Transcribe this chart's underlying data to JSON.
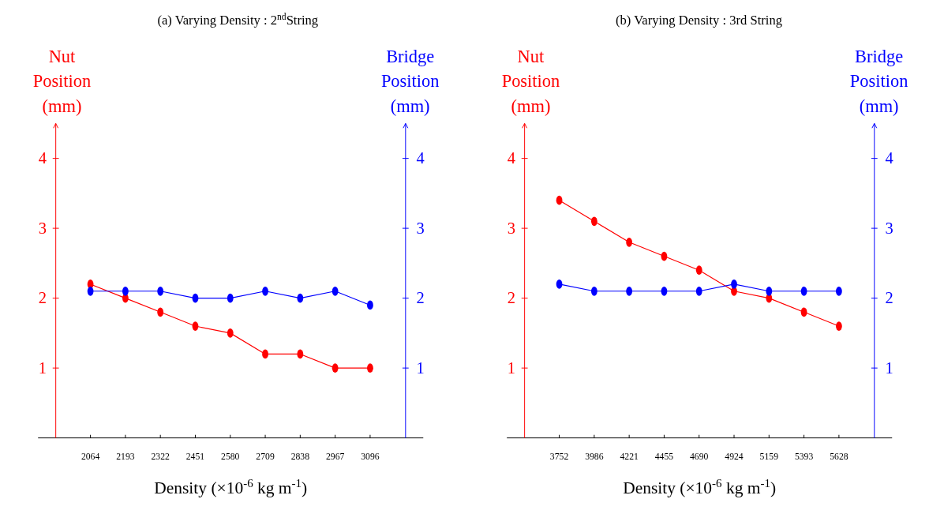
{
  "chart_data": [
    {
      "type": "line",
      "title": "(a) Varying Density : 2$^{nd}$String",
      "xlabel": "Density (×10$^{-6}$ kg m$^{-1}$)",
      "ylabel": "Nut Position (mm)",
      "y2label": "Bridge Position (mm)",
      "categories": [
        "2064",
        "2193",
        "2322",
        "2451",
        "2580",
        "2709",
        "2838",
        "2967",
        "3096"
      ],
      "series": [
        {
          "color": "#ff0000",
          "values": [
            2.2,
            2.0,
            1.8,
            1.6,
            1.5,
            1.2,
            1.2,
            1.0,
            1.0
          ]
        },
        {
          "color": "#0000ff",
          "axis": "y2",
          "values": [
            2.1,
            2.1,
            2.1,
            2.0,
            2.0,
            2.1,
            2.0,
            2.1,
            1.9
          ]
        }
      ],
      "ylim": [
        0,
        4.5
      ],
      "yticks": [
        1,
        2,
        3,
        4
      ],
      "y2lim": [
        0,
        4.5
      ],
      "y2ticks": [
        1,
        2,
        3,
        4
      ],
      "marker": "circle",
      "grid": false
    },
    {
      "type": "line",
      "title": "(b) Varying Density : 3rd String",
      "xlabel": "Density (×10$^{-6}$ kg m$^{-1}$)",
      "ylabel": "Nut Position (mm)",
      "y2label": "Bridge Position (mm)",
      "categories": [
        "3752",
        "3986",
        "4221",
        "4455",
        "4690",
        "4924",
        "5159",
        "5393",
        "5628"
      ],
      "series": [
        {
          "color": "#ff0000",
          "values": [
            3.4,
            3.1,
            2.8,
            2.6,
            2.4,
            2.1,
            2.0,
            1.8,
            1.6
          ]
        },
        {
          "color": "#0000ff",
          "axis": "y2",
          "values": [
            2.2,
            2.1,
            2.1,
            2.1,
            2.1,
            2.2,
            2.1,
            2.1,
            2.1
          ]
        }
      ],
      "ylim": [
        0,
        4.5
      ],
      "yticks": [
        1,
        2,
        3,
        4
      ],
      "y2lim": [
        0,
        4.5
      ],
      "y2ticks": [
        1,
        2,
        3,
        4
      ],
      "marker": "circle",
      "grid": false
    }
  ]
}
